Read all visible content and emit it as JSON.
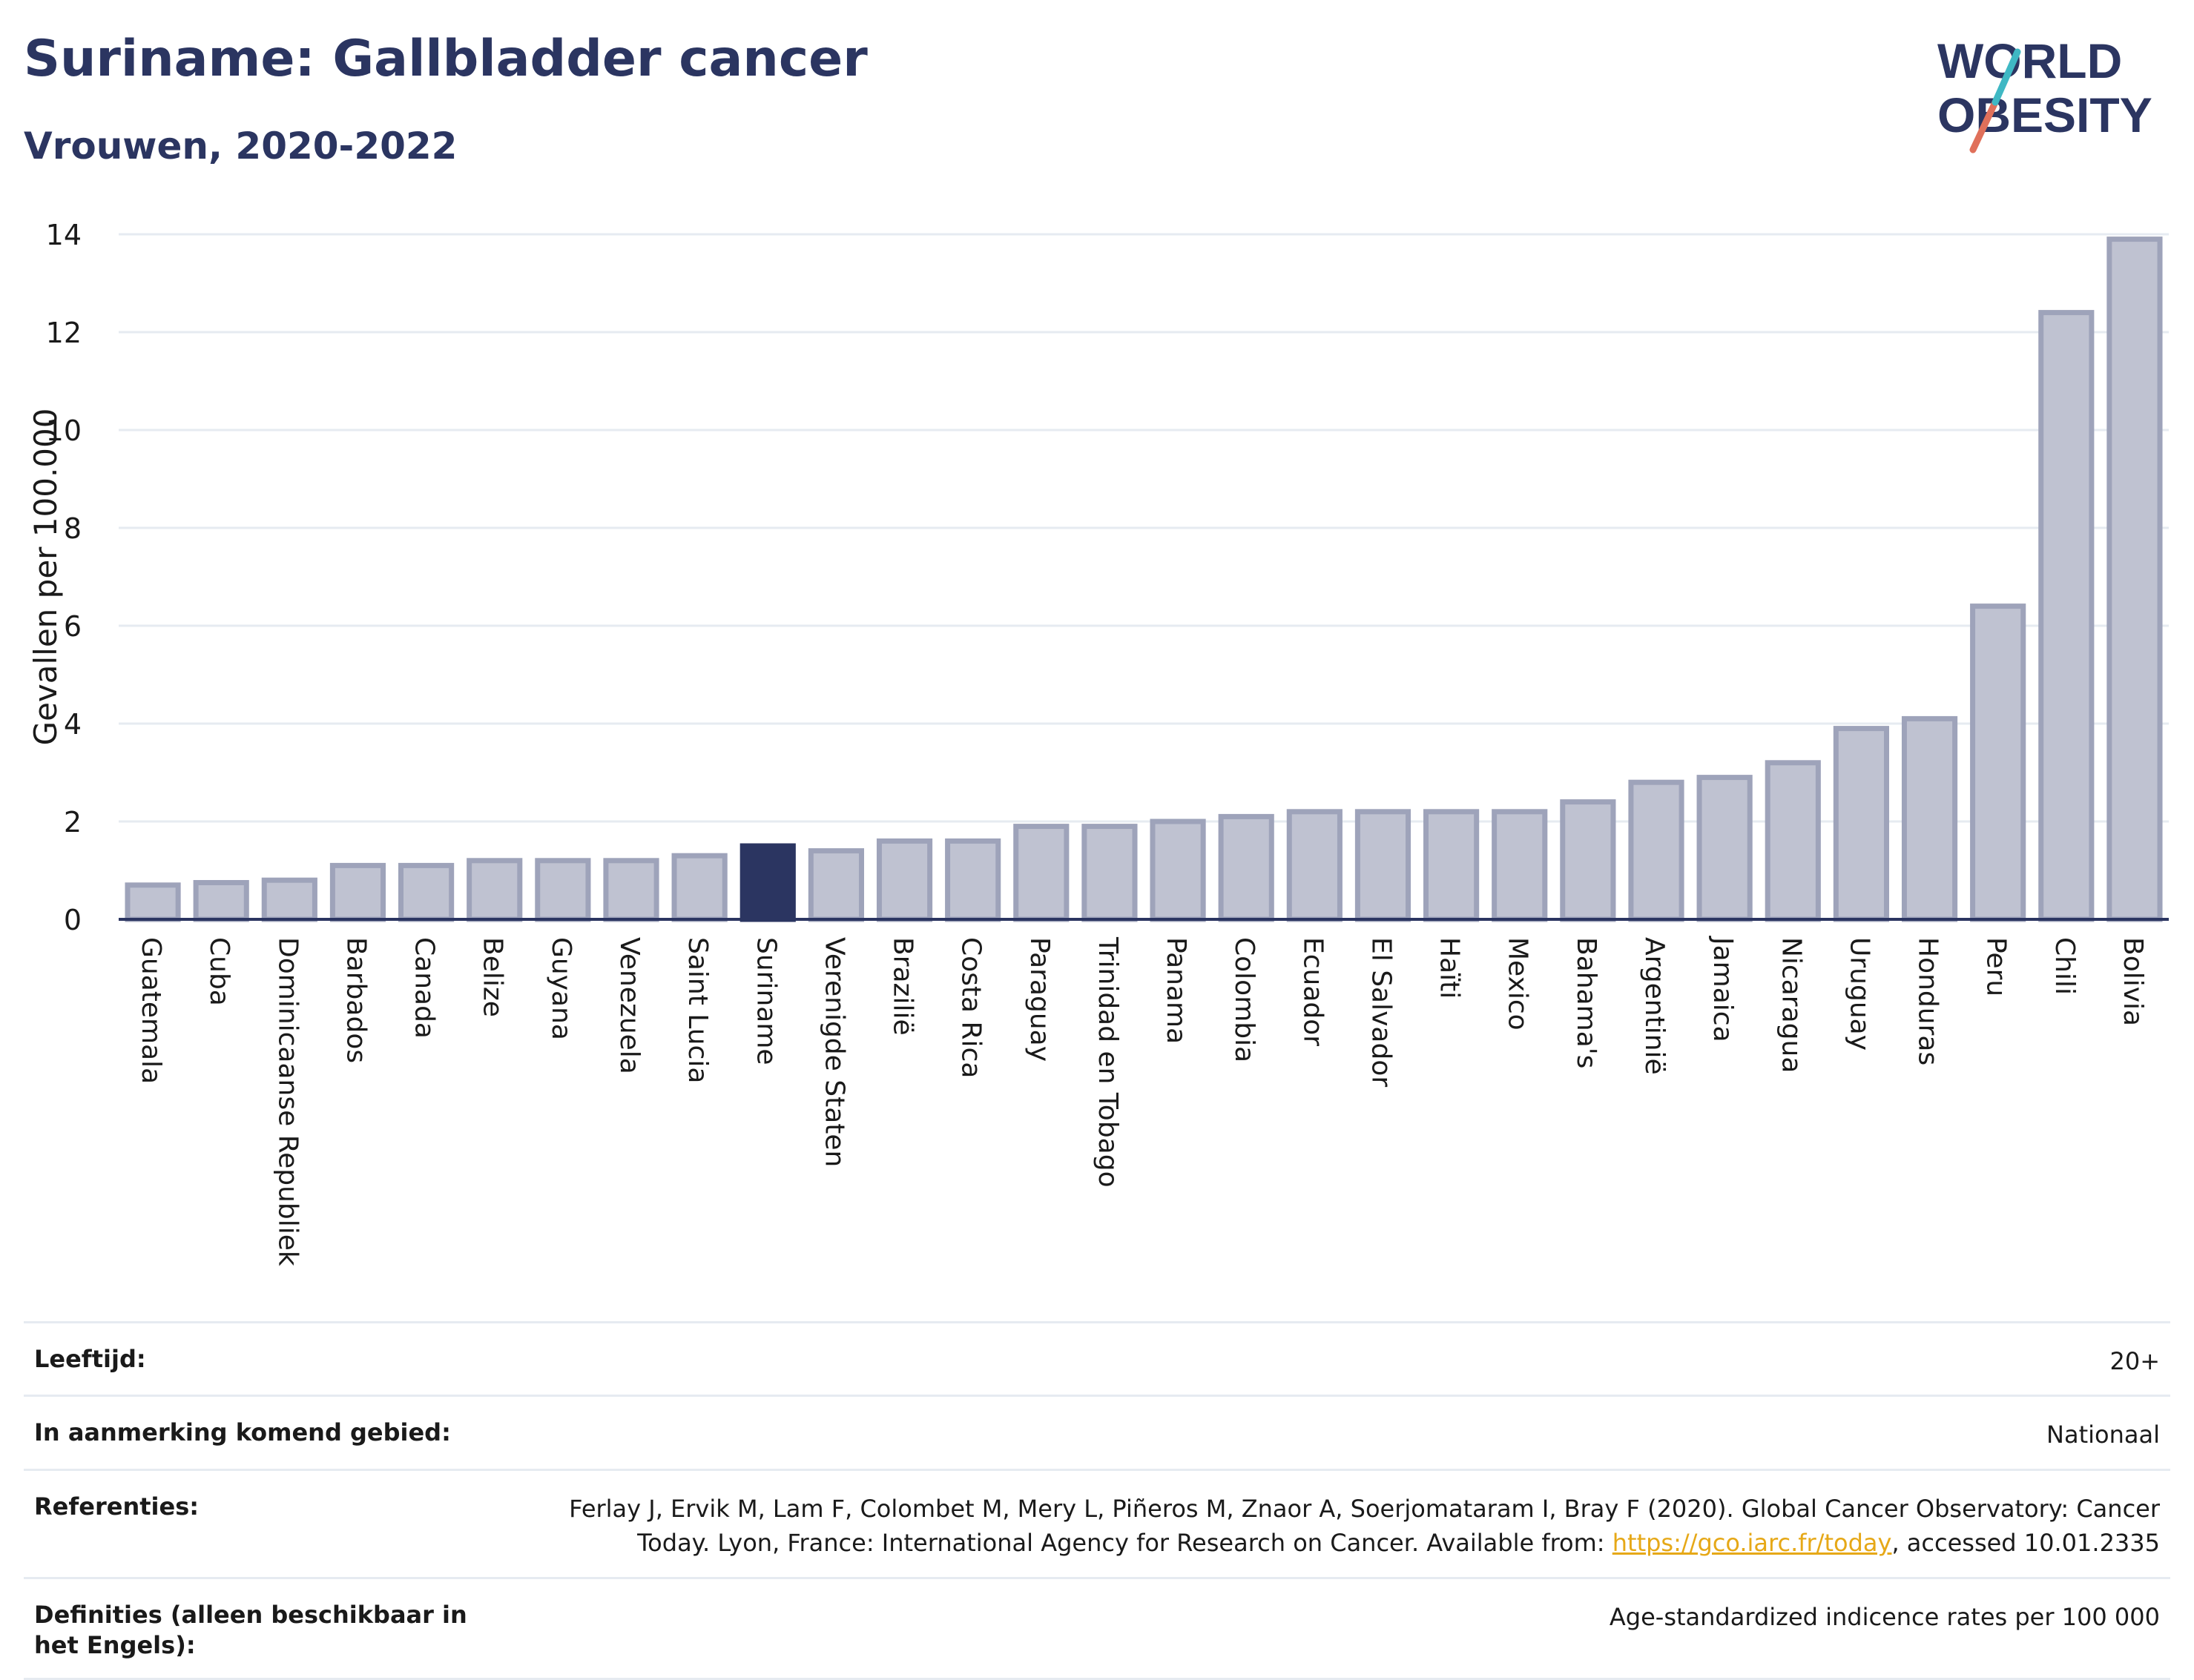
{
  "header": {
    "title": "Suriname: Gallbladder cancer",
    "subtitle": "Vrouwen, 2020-2022"
  },
  "logo": {
    "line1": "WORLD",
    "line2": "OBESITY",
    "accent_colors": [
      "#3fb8c4",
      "#e0705a"
    ]
  },
  "chart_data": {
    "type": "bar",
    "title": "Suriname: Gallbladder cancer",
    "subtitle": "Vrouwen, 2020-2022",
    "ylabel": "Gevallen per 100.000",
    "xlabel": "",
    "ylim": [
      0,
      14
    ],
    "yticks": [
      0,
      2,
      4,
      6,
      8,
      10,
      12,
      14
    ],
    "grid": true,
    "highlight": "Suriname",
    "colors": {
      "bar": "#bfc2d1",
      "bar_edge": "#9ea3ba",
      "highlight": "#2b3561",
      "axis": "#2b3561",
      "grid": "#e6ebf1"
    },
    "categories": [
      "Guatemala",
      "Cuba",
      "Dominicaanse Republiek",
      "Barbados",
      "Canada",
      "Belize",
      "Guyana",
      "Venezuela",
      "Saint Lucia",
      "Suriname",
      "Verenigde Staten",
      "Brazilië",
      "Costa Rica",
      "Paraguay",
      "Trinidad en Tobago",
      "Panama",
      "Colombia",
      "Ecuador",
      "El Salvador",
      "Haïti",
      "Mexico",
      "Bahama's",
      "Argentinië",
      "Jamaica",
      "Nicaragua",
      "Uruguay",
      "Honduras",
      "Peru",
      "Chili",
      "Bolivia"
    ],
    "values": [
      0.7,
      0.75,
      0.8,
      1.1,
      1.1,
      1.2,
      1.2,
      1.2,
      1.3,
      1.5,
      1.4,
      1.6,
      1.6,
      1.9,
      1.9,
      2.0,
      2.1,
      2.2,
      2.2,
      2.2,
      2.2,
      2.4,
      2.8,
      2.9,
      3.2,
      3.9,
      4.1,
      6.4,
      12.4,
      13.9
    ]
  },
  "meta": {
    "rows": [
      {
        "label": "Leeftijd:",
        "value": "20+"
      },
      {
        "label": "In aanmerking komend gebied:",
        "value": "Nationaal"
      },
      {
        "label": "Referenties:",
        "value_pre": "Ferlay J, Ervik M, Lam F, Colombet M, Mery L, Piñeros M, Znaor A, Soerjomataram I, Bray F (2020). Global Cancer Observatory: Cancer Today. Lyon, France: International Agency for Research on Cancer. Available from: ",
        "link": "https://gco.iarc.fr/today",
        "value_post": ", accessed 10.01.2335"
      },
      {
        "label": "Definities (alleen beschikbaar in het Engels):",
        "value": "Age-standardized indicence rates per 100 000"
      }
    ]
  }
}
